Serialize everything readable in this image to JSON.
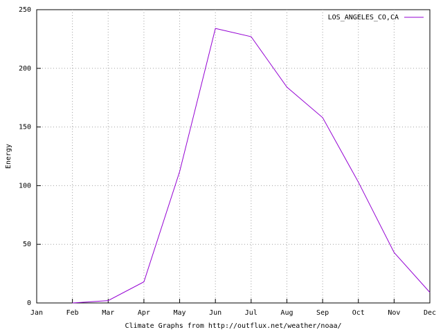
{
  "chart_data": {
    "type": "line",
    "y_label": "Energy",
    "x_label": "Climate Graphs from http://outflux.net/weather/noaa/",
    "categories": [
      "Jan",
      "Feb",
      "Mar",
      "Apr",
      "May",
      "Jun",
      "Jul",
      "Aug",
      "Sep",
      "Oct",
      "Nov",
      "Dec"
    ],
    "series": [
      {
        "name": "LOS_ANGELES_CO,CA",
        "color": "#9400d3",
        "values": [
          null,
          0,
          2,
          18,
          112,
          234,
          227,
          184,
          158,
          103,
          43,
          9
        ]
      }
    ],
    "ylim": [
      0,
      250
    ],
    "yticks": [
      0,
      50,
      100,
      150,
      200,
      250
    ],
    "grid": true,
    "legend": "top-right"
  }
}
